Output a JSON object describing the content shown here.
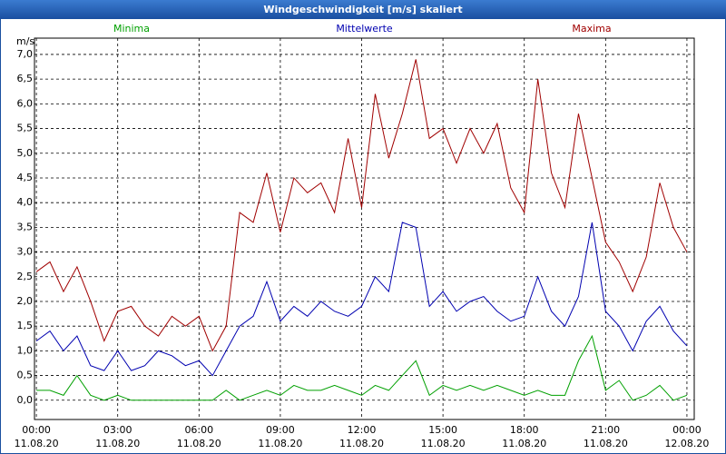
{
  "chart_data": {
    "type": "line",
    "title": "Windgeschwindigkeit [m/s] skaliert",
    "y_unit": "m/s",
    "x": [
      0,
      0.5,
      1,
      1.5,
      2,
      2.5,
      3,
      3.5,
      4,
      4.5,
      5,
      5.5,
      6,
      6.5,
      7,
      7.5,
      8,
      8.5,
      9,
      9.5,
      10,
      10.5,
      11,
      11.5,
      12,
      12.5,
      13,
      13.5,
      14,
      14.5,
      15,
      15.5,
      16,
      16.5,
      17,
      17.5,
      18,
      18.5,
      19,
      19.5,
      20,
      20.5,
      21,
      21.5,
      22,
      22.5,
      23,
      23.5,
      24
    ],
    "series": [
      {
        "name": "Minima",
        "color": "#00a000",
        "values": [
          0.2,
          0.2,
          0.1,
          0.5,
          0.1,
          0,
          0.1,
          0,
          0,
          0,
          0,
          0,
          0,
          0,
          0.2,
          0,
          0.1,
          0.2,
          0.1,
          0.3,
          0.2,
          0.2,
          0.3,
          0.2,
          0.1,
          0.3,
          0.2,
          0.5,
          0.8,
          0.1,
          0.3,
          0.2,
          0.3,
          0.2,
          0.3,
          0.2,
          0.1,
          0.2,
          0.1,
          0.1,
          0.8,
          1.3,
          0.2,
          0.4,
          0,
          0.1,
          0.3,
          0,
          0.1
        ]
      },
      {
        "name": "Mittelwerte",
        "color": "#0000b0",
        "values": [
          1.2,
          1.4,
          1.0,
          1.3,
          0.7,
          0.6,
          1.0,
          0.6,
          0.7,
          1.0,
          0.9,
          0.7,
          0.8,
          0.5,
          1.0,
          1.5,
          1.7,
          2.4,
          1.6,
          1.9,
          1.7,
          2.0,
          1.8,
          1.7,
          1.9,
          2.5,
          2.2,
          3.6,
          3.5,
          1.9,
          2.2,
          1.8,
          2.0,
          2.1,
          1.8,
          1.6,
          1.7,
          2.5,
          1.8,
          1.5,
          2.1,
          3.6,
          1.8,
          1.5,
          1.0,
          1.6,
          1.9,
          1.4,
          1.1
        ]
      },
      {
        "name": "Maxima",
        "color": "#a00000",
        "values": [
          2.6,
          2.8,
          2.2,
          2.7,
          2.0,
          1.2,
          1.8,
          1.9,
          1.5,
          1.3,
          1.7,
          1.5,
          1.7,
          1.0,
          1.5,
          3.8,
          3.6,
          4.6,
          3.4,
          4.5,
          4.2,
          4.4,
          3.8,
          5.3,
          3.9,
          6.2,
          4.9,
          5.8,
          6.9,
          5.3,
          5.5,
          4.8,
          5.5,
          5.0,
          5.6,
          4.3,
          3.8,
          6.5,
          4.6,
          3.9,
          5.8,
          4.5,
          3.2,
          2.8,
          2.2,
          2.9,
          4.4,
          3.5,
          3.0
        ]
      }
    ],
    "xlim": [
      -0.07,
      24.27
    ],
    "xticks": [
      {
        "value": 0,
        "label": "00:00"
      },
      {
        "value": 3,
        "label": "03:00"
      },
      {
        "value": 6,
        "label": "06:00"
      },
      {
        "value": 9,
        "label": "09:00"
      },
      {
        "value": 12,
        "label": "12:00"
      },
      {
        "value": 15,
        "label": "15:00"
      },
      {
        "value": 18,
        "label": "18:00"
      },
      {
        "value": 21,
        "label": "21:00"
      },
      {
        "value": 24,
        "label": "00:00"
      }
    ],
    "xtick_dates": [
      "11.08.20",
      "11.08.20",
      "11.08.20",
      "11.08.20",
      "11.08.20",
      "11.08.20",
      "11.08.20",
      "11.08.20",
      "12.08.20"
    ],
    "ylim": [
      -0.39,
      7.33
    ],
    "yticks": [
      {
        "value": 0,
        "label": "0,0"
      },
      {
        "value": 0.5,
        "label": "0,5"
      },
      {
        "value": 1,
        "label": "1,0"
      },
      {
        "value": 1.5,
        "label": "1,5"
      },
      {
        "value": 2,
        "label": "2,0"
      },
      {
        "value": 2.5,
        "label": "2,5"
      },
      {
        "value": 3,
        "label": "3,0"
      },
      {
        "value": 3.5,
        "label": "3,5"
      },
      {
        "value": 4,
        "label": "4,0"
      },
      {
        "value": 4.5,
        "label": "4,5"
      },
      {
        "value": 5,
        "label": "5,0"
      },
      {
        "value": 5.5,
        "label": "5,5"
      },
      {
        "value": 6,
        "label": "6,0"
      },
      {
        "value": 6.5,
        "label": "6,5"
      },
      {
        "value": 7,
        "label": "7,0"
      }
    ],
    "grid": true
  }
}
